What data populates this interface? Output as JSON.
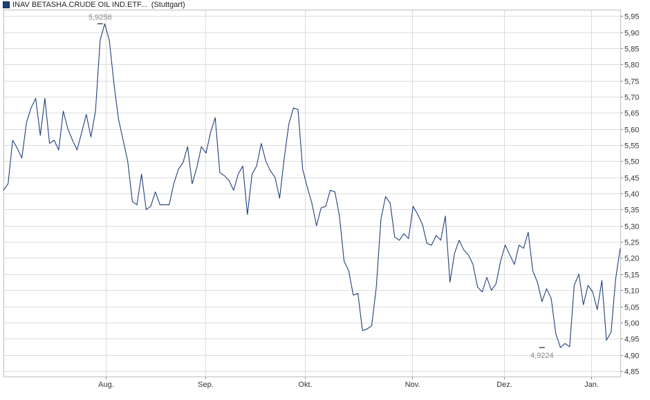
{
  "chart_data": {
    "type": "line",
    "legend": {
      "series_label": "INAV BETASHA.CRUDE OIL IND.ETF...",
      "exchange": "(Stuttgart)",
      "placement": "top-left"
    },
    "x_ticks": [
      "Aug.",
      "Sep.",
      "Okt.",
      "Nov.",
      "Dez.",
      "Jan."
    ],
    "y_ticks": [
      "4,85",
      "4,90",
      "4,95",
      "5,00",
      "5,05",
      "5,10",
      "5,15",
      "5,20",
      "5,25",
      "5,30",
      "5,35",
      "5,40",
      "5,45",
      "5,50",
      "5,55",
      "5,60",
      "5,65",
      "5,70",
      "5,75",
      "5,80",
      "5,85",
      "5,90",
      "5,95"
    ],
    "ylim": [
      4.8327,
      5.9696
    ],
    "grid": true,
    "line_color": "#1f3f7a",
    "annotations": {
      "max": {
        "label": "5,9258",
        "value": 5.9258,
        "index": 21
      },
      "min": {
        "label": "4,9224",
        "value": 4.9224,
        "index": 117
      }
    },
    "series": [
      {
        "values": [
          5.41,
          5.43,
          5.565,
          5.54,
          5.51,
          5.62,
          5.665,
          5.695,
          5.58,
          5.695,
          5.555,
          5.565,
          5.535,
          5.655,
          5.6,
          5.565,
          5.535,
          5.59,
          5.645,
          5.575,
          5.655,
          5.875,
          5.9258,
          5.875,
          5.74,
          5.63,
          5.565,
          5.5,
          5.375,
          5.365,
          5.46,
          5.35,
          5.36,
          5.405,
          5.365,
          5.365,
          5.365,
          5.43,
          5.475,
          5.495,
          5.545,
          5.43,
          5.48,
          5.545,
          5.525,
          5.59,
          5.635,
          5.465,
          5.455,
          5.44,
          5.41,
          5.46,
          5.485,
          5.335,
          5.46,
          5.485,
          5.555,
          5.5,
          5.47,
          5.45,
          5.385,
          5.51,
          5.615,
          5.665,
          5.66,
          5.475,
          5.42,
          5.37,
          5.3,
          5.355,
          5.36,
          5.41,
          5.405,
          5.33,
          5.19,
          5.16,
          5.085,
          5.09,
          4.975,
          4.98,
          4.99,
          5.11,
          5.32,
          5.39,
          5.37,
          5.265,
          5.255,
          5.275,
          5.26,
          5.36,
          5.335,
          5.305,
          5.245,
          5.24,
          5.27,
          5.255,
          5.33,
          5.125,
          5.215,
          5.255,
          5.225,
          5.21,
          5.18,
          5.11,
          5.095,
          5.14,
          5.1,
          5.12,
          5.19,
          5.24,
          5.21,
          5.18,
          5.24,
          5.23,
          5.28,
          5.16,
          5.125,
          5.065,
          5.105,
          5.075,
          4.965,
          4.9224,
          4.935,
          4.925,
          5.115,
          5.15,
          5.055,
          5.115,
          5.095,
          5.04,
          5.13,
          4.945,
          4.97,
          5.135,
          5.23
        ]
      }
    ]
  }
}
